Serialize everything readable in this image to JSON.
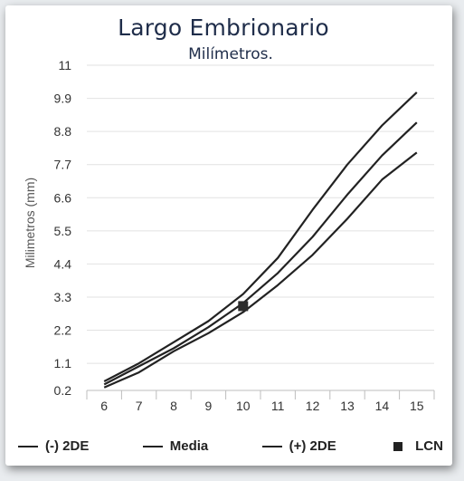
{
  "chart_data": {
    "type": "line",
    "title": "Largo Embrionario",
    "subtitle": "Milímetros.",
    "xlabel": "",
    "ylabel": "Milimetros (mm)",
    "categories": [
      "6",
      "7",
      "8",
      "9",
      "10",
      "11",
      "12",
      "13",
      "14",
      "15"
    ],
    "x": [
      6,
      7,
      8,
      9,
      10,
      11,
      12,
      13,
      14,
      15
    ],
    "ylim": [
      0.2,
      11
    ],
    "yticks": [
      "0.2",
      "1.1",
      "2.2",
      "3.3",
      "4.4",
      "5.5",
      "6.6",
      "7.7",
      "8.8",
      "9.9",
      "11"
    ],
    "grid": true,
    "legend_position": "bottom",
    "series": [
      {
        "name": "(-) 2DE",
        "values": [
          0.3,
          0.8,
          1.5,
          2.1,
          2.8,
          3.7,
          4.7,
          5.9,
          7.2,
          8.1
        ],
        "color": "#222222"
      },
      {
        "name": "Media",
        "values": [
          0.4,
          1.0,
          1.6,
          2.3,
          3.1,
          4.1,
          5.3,
          6.7,
          8.0,
          9.1
        ],
        "color": "#222222"
      },
      {
        "name": "(+) 2DE",
        "values": [
          0.5,
          1.1,
          1.8,
          2.5,
          3.4,
          4.6,
          6.2,
          7.7,
          9.0,
          10.1
        ],
        "color": "#222222"
      }
    ],
    "points": [
      {
        "name": "LCN",
        "x": 10,
        "y": 3.0,
        "color": "#2b2b2b"
      }
    ]
  }
}
